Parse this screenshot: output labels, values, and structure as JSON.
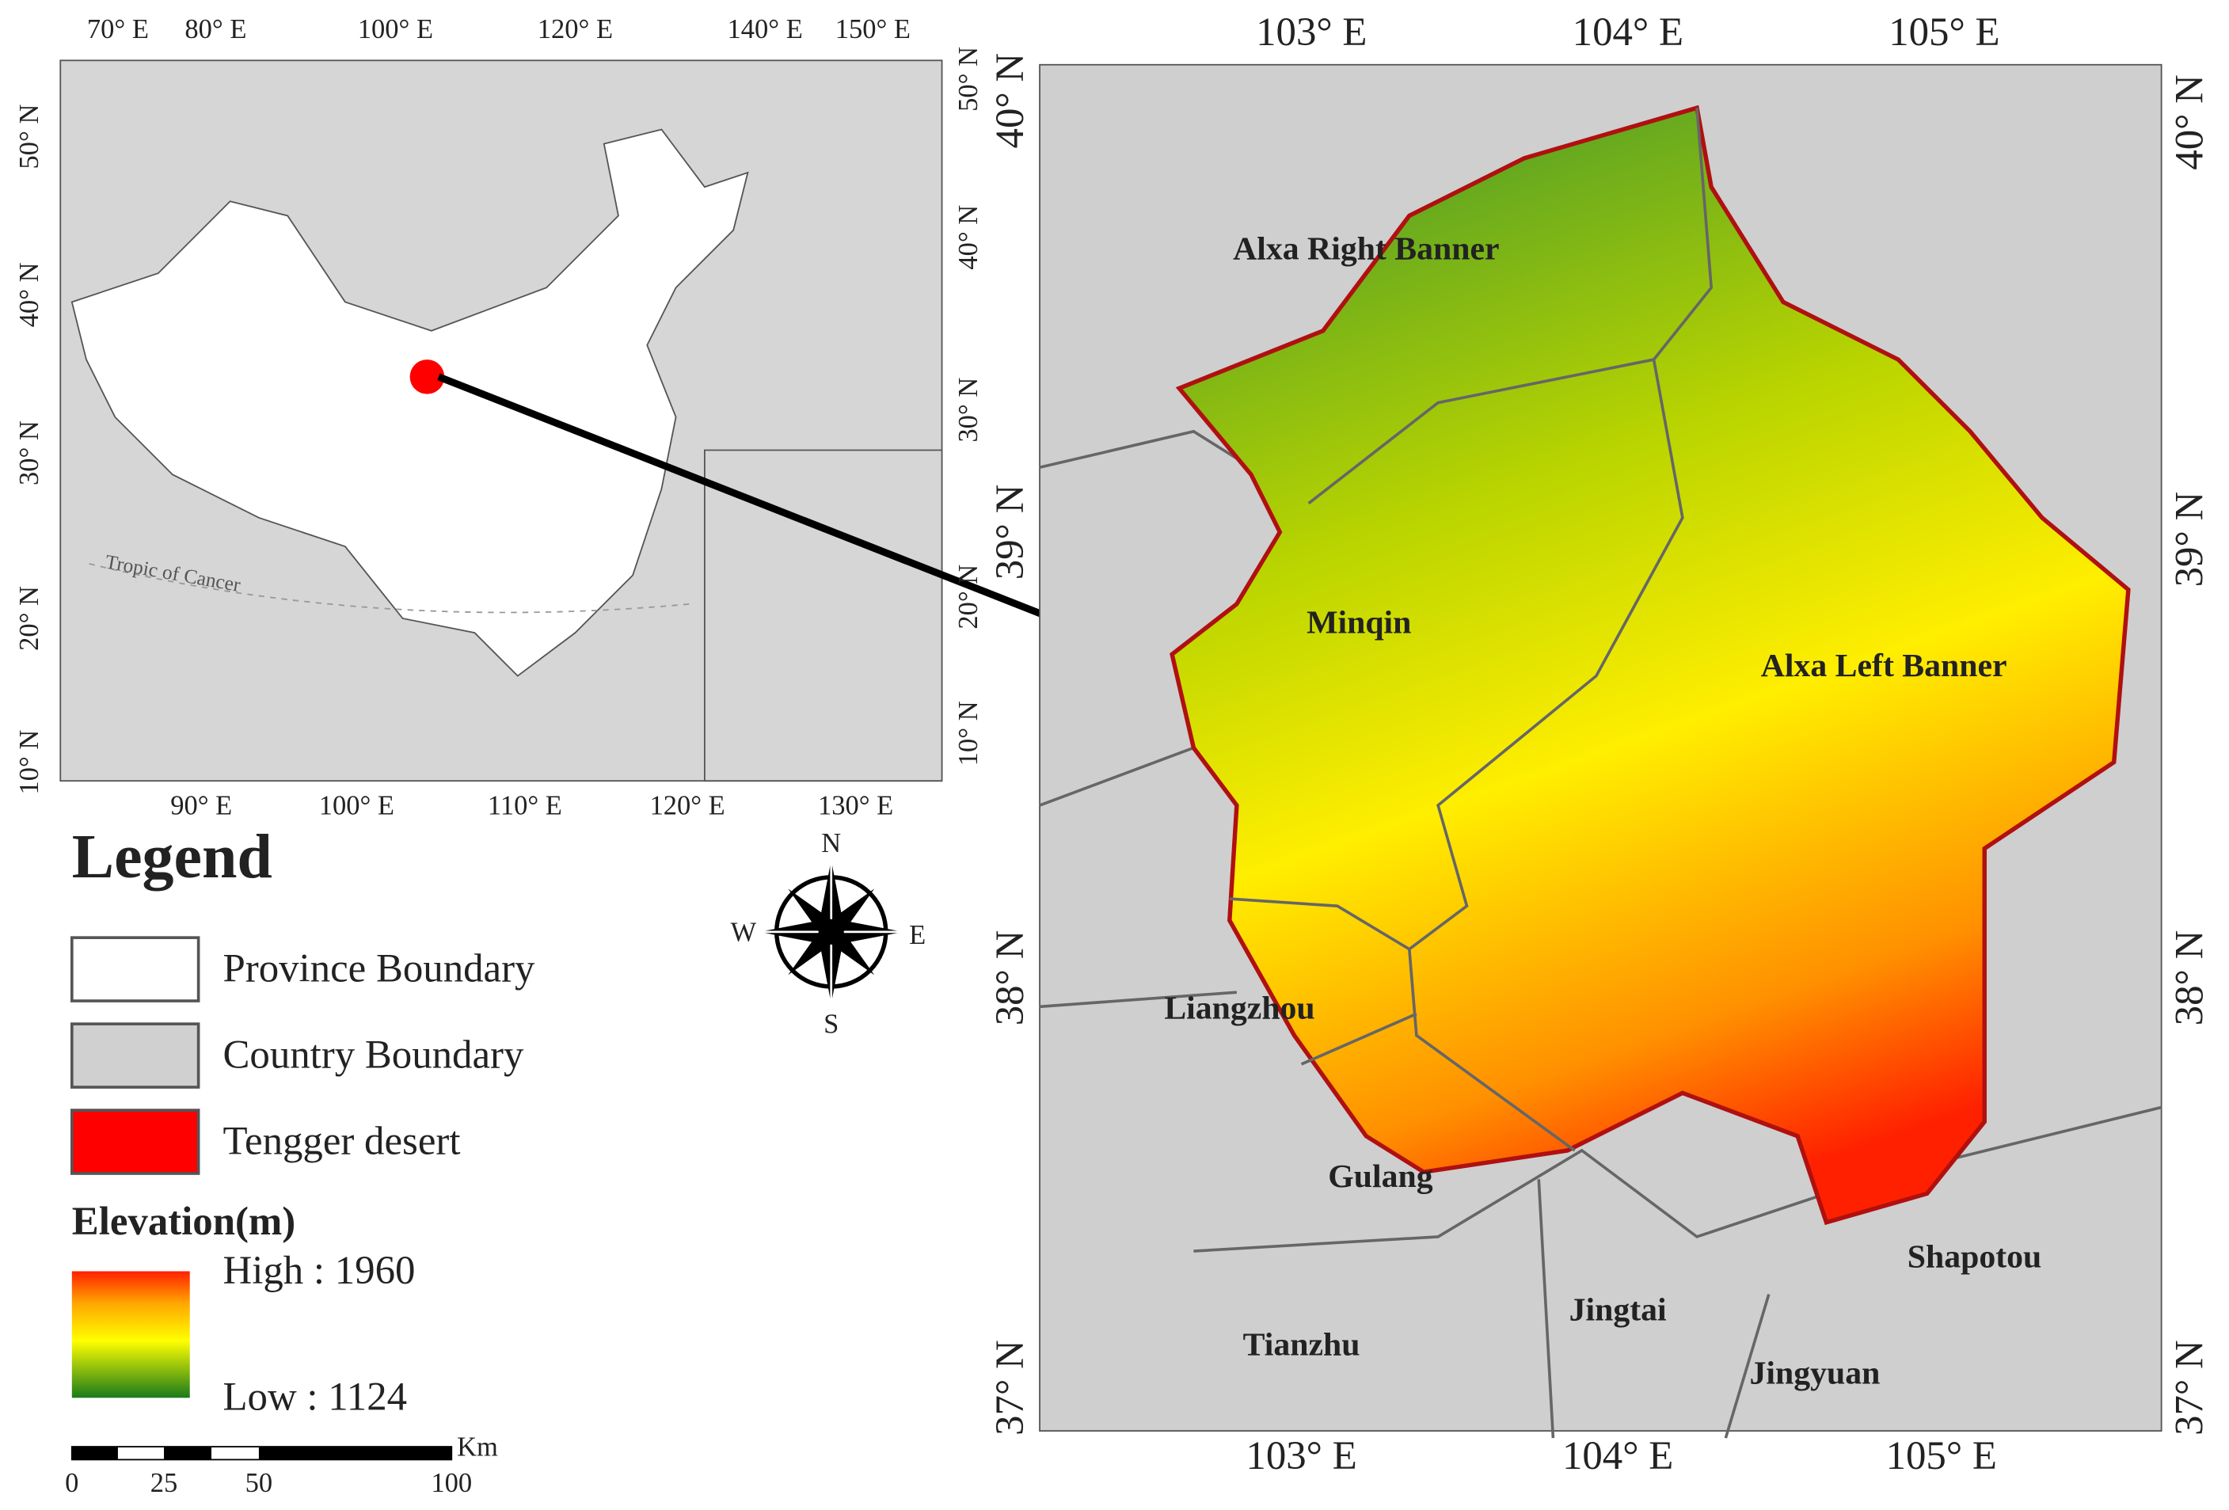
{
  "overview_map": {
    "top_lon_labels": [
      "70° E",
      "80° E",
      "100° E",
      "120° E",
      "140° E",
      "150° E"
    ],
    "bottom_lon_labels": [
      "90° E",
      "100° E",
      "110° E",
      "120° E",
      "130° E"
    ],
    "left_lat_labels": [
      "50° N",
      "40° N",
      "30° N",
      "20° N",
      "10° N"
    ],
    "right_lat_labels": [
      "50° N",
      "40° N",
      "30° N",
      "20° N",
      "10° N"
    ],
    "annotation": "Tropic of Cancer"
  },
  "legend": {
    "title": "Legend",
    "items": [
      {
        "label": "Province Boundary",
        "color": "#ffffff"
      },
      {
        "label": "Country Boundary",
        "color": "#d0d0d0"
      },
      {
        "label": "Tengger desert",
        "color": "#ff0000"
      }
    ],
    "elevation": {
      "title": "Elevation(m)",
      "high": "High : 1960",
      "low": "Low : 1124"
    },
    "scale_bar": {
      "ticks": [
        "0",
        "25",
        "50",
        "100"
      ],
      "unit": "Km"
    }
  },
  "compass": {
    "north": "N",
    "south": "S",
    "east": "E",
    "west": "W"
  },
  "main_map": {
    "top_lon_labels": [
      "103° E",
      "104° E",
      "105° E"
    ],
    "bottom_lon_labels": [
      "103° E",
      "104° E",
      "105° E"
    ],
    "left_lat_labels": [
      "40° N",
      "39° N",
      "38° N",
      "37° N"
    ],
    "right_lat_labels": [
      "40° N",
      "39° N",
      "38° N",
      "37° N"
    ],
    "places": [
      "Alxa Right Banner",
      "Minqin",
      "Alxa Left Banner",
      "Liangzhou",
      "Gulang",
      "Tianzhu",
      "Jingtai",
      "Jingyuan",
      "Shapotou"
    ]
  }
}
